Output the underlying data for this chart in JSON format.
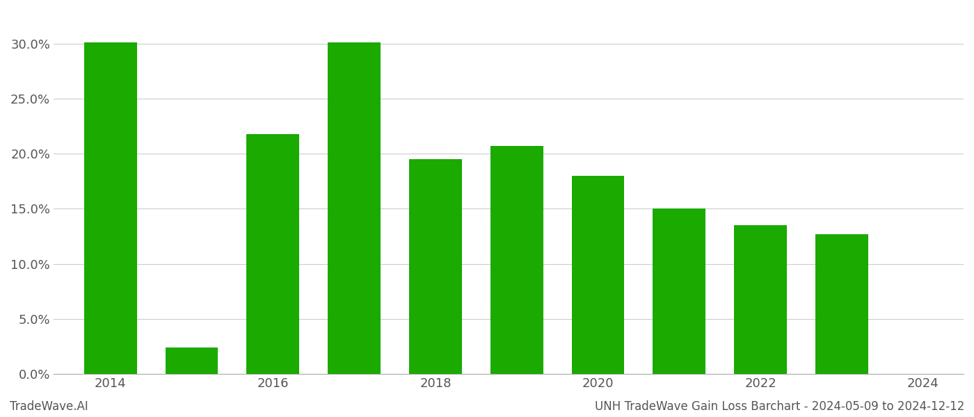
{
  "years": [
    2014,
    2015,
    2016,
    2017,
    2018,
    2019,
    2020,
    2021,
    2022,
    2023
  ],
  "values": [
    0.301,
    0.024,
    0.218,
    0.301,
    0.195,
    0.207,
    0.18,
    0.15,
    0.135,
    0.127
  ],
  "bar_color": "#1aaa00",
  "background_color": "#ffffff",
  "grid_color": "#cccccc",
  "title": "UNH TradeWave Gain Loss Barchart - 2024-05-09 to 2024-12-12",
  "footer_left": "TradeWave.AI",
  "ylim": [
    0,
    0.33
  ],
  "ytick_values": [
    0.0,
    0.05,
    0.1,
    0.15,
    0.2,
    0.25,
    0.3
  ],
  "xtick_values": [
    2014,
    2016,
    2018,
    2020,
    2022,
    2024
  ],
  "xlim": [
    2013.3,
    2024.5
  ],
  "bar_width": 0.65,
  "figsize": [
    14.0,
    6.0
  ],
  "dpi": 100
}
